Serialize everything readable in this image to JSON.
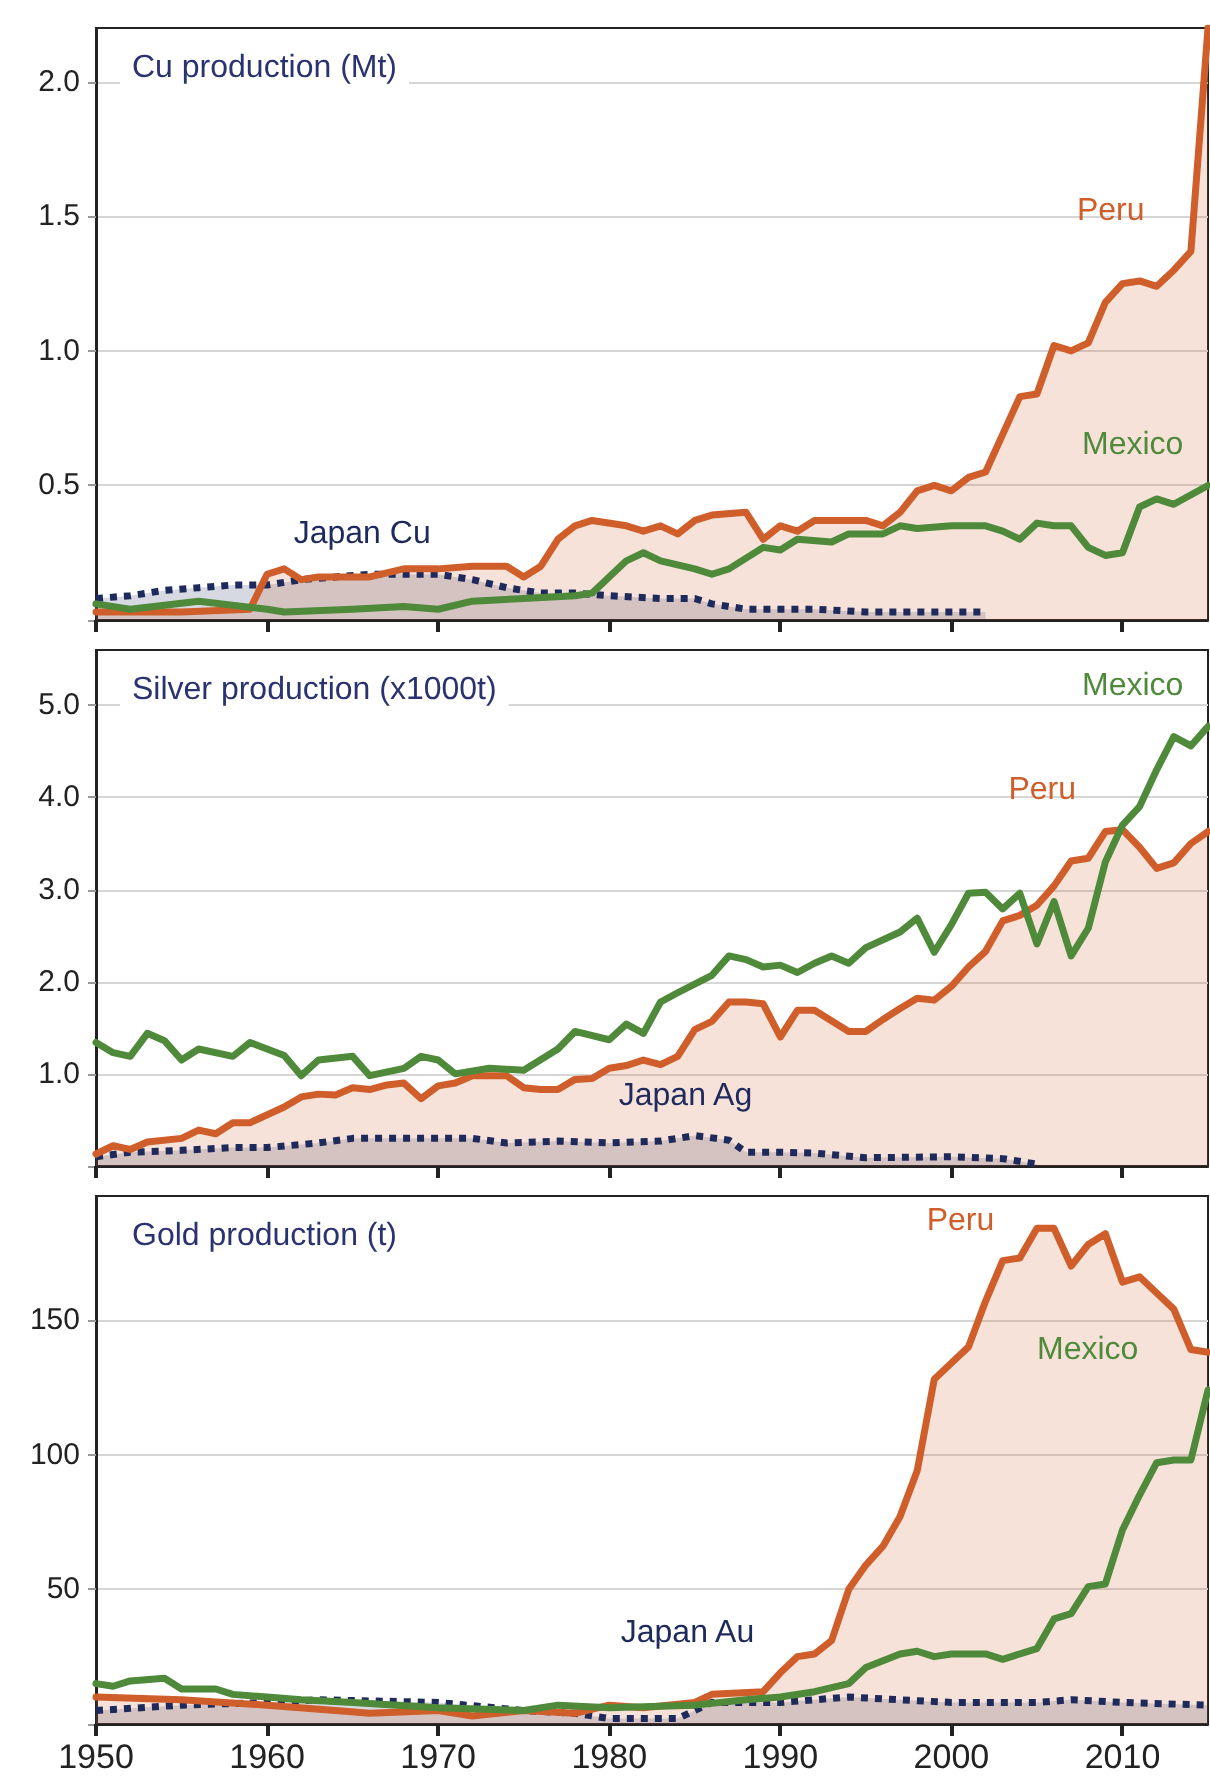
{
  "chart_data": [
    {
      "type": "line",
      "title": "Cu production (Mt)",
      "xlim": [
        1950,
        2015
      ],
      "xticks": [
        1950,
        1960,
        1970,
        1980,
        1990,
        2000,
        2010
      ],
      "ylim": [
        0,
        2.2
      ],
      "yticks": [
        {
          "value": 0,
          "label": null
        },
        {
          "value": 0.5,
          "label": "0.5"
        },
        {
          "value": 1,
          "label": "1.0"
        },
        {
          "value": 1.5,
          "label": "1.5"
        },
        {
          "value": 2,
          "label": "2.0"
        }
      ],
      "grid": "y",
      "tick_labels": "y",
      "marker": "none",
      "series": [
        {
          "name": "Japan Cu",
          "type": "area",
          "color": "#1f2a5c",
          "line_style": "dotted",
          "x": [
            1950,
            1952,
            1954,
            1956,
            1958,
            1960,
            1962,
            1964,
            1966,
            1968,
            1970,
            1972,
            1974,
            1976,
            1978,
            1980,
            1983,
            1985,
            1986,
            1988,
            1992,
            1995,
            2002
          ],
          "values": [
            0.08,
            0.09,
            0.11,
            0.12,
            0.13,
            0.13,
            0.15,
            0.16,
            0.17,
            0.17,
            0.17,
            0.15,
            0.12,
            0.1,
            0.1,
            0.09,
            0.08,
            0.08,
            0.06,
            0.04,
            0.04,
            0.03,
            0.03
          ]
        },
        {
          "name": "Peru",
          "type": "area",
          "color": "#cf5e2a",
          "x": [
            1950,
            1955,
            1959,
            1960,
            1961,
            1962,
            1963,
            1966,
            1968,
            1970,
            1972,
            1974,
            1975,
            1976,
            1977,
            1978,
            1979,
            1981,
            1982,
            1983,
            1984,
            1985,
            1986,
            1988,
            1989,
            1990,
            1991,
            1992,
            1995,
            1996,
            1997,
            1998,
            1999,
            2000,
            2001,
            2002,
            2003,
            2004,
            2005,
            2006,
            2007,
            2008,
            2009,
            2010,
            2011,
            2012,
            2013,
            2014,
            2015
          ],
          "values": [
            0.03,
            0.03,
            0.04,
            0.17,
            0.19,
            0.15,
            0.16,
            0.16,
            0.19,
            0.19,
            0.2,
            0.2,
            0.16,
            0.2,
            0.3,
            0.35,
            0.37,
            0.35,
            0.33,
            0.35,
            0.32,
            0.37,
            0.39,
            0.4,
            0.3,
            0.35,
            0.33,
            0.37,
            0.37,
            0.35,
            0.4,
            0.48,
            0.5,
            0.48,
            0.53,
            0.55,
            0.69,
            0.83,
            0.84,
            1.02,
            1,
            1.03,
            1.18,
            1.25,
            1.26,
            1.24,
            1.3,
            1.37,
            2.2
          ]
        },
        {
          "name": "Mexico",
          "color": "#4e8a3a",
          "x": [
            1950,
            1952,
            1956,
            1960,
            1961,
            1965,
            1968,
            1970,
            1972,
            1975,
            1978,
            1979,
            1981,
            1982,
            1983,
            1985,
            1986,
            1987,
            1988,
            1989,
            1990,
            1991,
            1993,
            1994,
            1996,
            1997,
            1998,
            2000,
            2002,
            2003,
            2004,
            2005,
            2006,
            2007,
            2008,
            2009,
            2010,
            2011,
            2012,
            2013,
            2015
          ],
          "values": [
            0.06,
            0.04,
            0.07,
            0.04,
            0.03,
            0.04,
            0.05,
            0.04,
            0.07,
            0.08,
            0.09,
            0.1,
            0.22,
            0.25,
            0.22,
            0.19,
            0.17,
            0.19,
            0.23,
            0.27,
            0.26,
            0.3,
            0.29,
            0.32,
            0.32,
            0.35,
            0.34,
            0.35,
            0.35,
            0.33,
            0.3,
            0.36,
            0.35,
            0.35,
            0.27,
            0.24,
            0.25,
            0.42,
            0.45,
            0.43,
            0.5
          ]
        }
      ]
    },
    {
      "type": "line",
      "title": "Silver production (x1000t)",
      "xlim": [
        1950,
        2015
      ],
      "xticks": [
        1950,
        1960,
        1970,
        1980,
        1990,
        2000,
        2010
      ],
      "ylim": [
        0,
        5.6
      ],
      "yticks": [
        {
          "value": 0,
          "label": null
        },
        {
          "value": 1,
          "label": "1.0"
        },
        {
          "value": 2,
          "label": "2.0"
        },
        {
          "value": 3,
          "label": "3.0"
        },
        {
          "value": 4,
          "label": "4.0"
        },
        {
          "value": 5,
          "label": "5.0"
        }
      ],
      "grid": "y",
      "tick_labels": "y",
      "marker": "none",
      "series": [
        {
          "name": "Japan Ag",
          "type": "area",
          "color": "#1f2a5c",
          "line_style": "dotted",
          "x": [
            1950,
            1952,
            1955,
            1958,
            1960,
            1963,
            1965,
            1970,
            1972,
            1974,
            1977,
            1980,
            1983,
            1985,
            1987,
            1988,
            1990,
            1992,
            1995,
            2000,
            2003,
            2005
          ],
          "values": [
            0.1,
            0.15,
            0.17,
            0.2,
            0.2,
            0.25,
            0.3,
            0.3,
            0.3,
            0.25,
            0.27,
            0.25,
            0.27,
            0.33,
            0.28,
            0.15,
            0.15,
            0.14,
            0.09,
            0.1,
            0.08,
            0.02
          ]
        },
        {
          "name": "Peru",
          "type": "area",
          "color": "#cf5e2a",
          "x": [
            1950,
            1951,
            1952,
            1953,
            1955,
            1956,
            1957,
            1958,
            1959,
            1961,
            1962,
            1963,
            1964,
            1965,
            1966,
            1967,
            1968,
            1969,
            1970,
            1971,
            1972,
            1973,
            1974,
            1975,
            1976,
            1977,
            1978,
            1979,
            1980,
            1981,
            1982,
            1983,
            1984,
            1985,
            1986,
            1987,
            1988,
            1989,
            1990,
            1991,
            1992,
            1994,
            1995,
            1996,
            1997,
            1998,
            1999,
            2000,
            2001,
            2002,
            2003,
            2004,
            2005,
            2006,
            2007,
            2008,
            2009,
            2010,
            2011,
            2012,
            2013,
            2014,
            2015
          ],
          "values": [
            0.13,
            0.22,
            0.18,
            0.26,
            0.3,
            0.39,
            0.35,
            0.47,
            0.47,
            0.64,
            0.75,
            0.78,
            0.77,
            0.85,
            0.83,
            0.88,
            0.9,
            0.73,
            0.87,
            0.9,
            0.98,
            0.98,
            0.98,
            0.85,
            0.83,
            0.83,
            0.94,
            0.95,
            1.06,
            1.09,
            1.15,
            1.1,
            1.19,
            1.48,
            1.57,
            1.78,
            1.78,
            1.76,
            1.4,
            1.69,
            1.69,
            1.46,
            1.46,
            1.59,
            1.71,
            1.82,
            1.8,
            1.95,
            2.16,
            2.33,
            2.66,
            2.72,
            2.83,
            3.04,
            3.31,
            3.34,
            3.63,
            3.65,
            3.46,
            3.23,
            3.29,
            3.5,
            3.63
          ]
        },
        {
          "name": "Mexico",
          "color": "#4e8a3a",
          "x": [
            1950,
            1951,
            1952,
            1953,
            1954,
            1955,
            1956,
            1958,
            1959,
            1960,
            1961,
            1962,
            1963,
            1965,
            1966,
            1968,
            1969,
            1970,
            1971,
            1973,
            1975,
            1977,
            1978,
            1980,
            1981,
            1982,
            1983,
            1984,
            1986,
            1987,
            1988,
            1989,
            1990,
            1991,
            1992,
            1993,
            1994,
            1995,
            1997,
            1998,
            1999,
            2000,
            2001,
            2002,
            2003,
            2004,
            2005,
            2006,
            2007,
            2008,
            2009,
            2010,
            2011,
            2012,
            2013,
            2014,
            2015
          ],
          "values": [
            1.34,
            1.23,
            1.19,
            1.44,
            1.36,
            1.15,
            1.27,
            1.19,
            1.34,
            1.27,
            1.2,
            0.98,
            1.15,
            1.19,
            0.98,
            1.06,
            1.19,
            1.15,
            1,
            1.06,
            1.04,
            1.27,
            1.46,
            1.37,
            1.54,
            1.44,
            1.78,
            1.88,
            2.07,
            2.28,
            2.24,
            2.16,
            2.18,
            2.1,
            2.2,
            2.28,
            2.2,
            2.37,
            2.54,
            2.69,
            2.32,
            2.62,
            2.96,
            2.97,
            2.79,
            2.96,
            2.41,
            2.87,
            2.28,
            2.58,
            3.3,
            3.7,
            3.9,
            4.3,
            4.66,
            4.56,
            4.77
          ]
        }
      ]
    },
    {
      "type": "line",
      "title": "Gold production (t)",
      "xlim": [
        1950,
        2015
      ],
      "xticks": [
        1950,
        1960,
        1970,
        1980,
        1990,
        2000,
        2010
      ],
      "ylim": [
        0,
        196
      ],
      "yticks": [
        {
          "value": 0,
          "label": null
        },
        50,
        100,
        150
      ],
      "grid": "y",
      "marker": "none",
      "series": [
        {
          "name": "Japan Au",
          "type": "area",
          "color": "#1f2a5c",
          "line_style": "dotted",
          "x": [
            1950,
            1955,
            1960,
            1963,
            1970,
            1975,
            1978,
            1980,
            1984,
            1986,
            1990,
            1994,
            2000,
            2005,
            2007,
            2010,
            2015
          ],
          "values": [
            5,
            7,
            8,
            9,
            8,
            5,
            4,
            2,
            2,
            8,
            8,
            10,
            8,
            8,
            9,
            8,
            7
          ]
        },
        {
          "name": "Peru",
          "type": "area",
          "color": "#cf5e2a",
          "x": [
            1950,
            1955,
            1960,
            1964,
            1966,
            1970,
            1972,
            1975,
            1978,
            1980,
            1982,
            1985,
            1986,
            1989,
            1990,
            1991,
            1992,
            1993,
            1994,
            1995,
            1996,
            1997,
            1998,
            1999,
            2000,
            2001,
            2002,
            2003,
            2004,
            2005,
            2006,
            2007,
            2008,
            2009,
            2010,
            2011,
            2012,
            2013,
            2014,
            2015
          ],
          "values": [
            10,
            9,
            7,
            5,
            4,
            5,
            3,
            5,
            4,
            7,
            6,
            8,
            11,
            12,
            19,
            25,
            26,
            31,
            50,
            59,
            66,
            77,
            94,
            128,
            134,
            140,
            157,
            172,
            173,
            184,
            184,
            170,
            178,
            182,
            164,
            166,
            160,
            154,
            139,
            138
          ]
        },
        {
          "name": "Mexico",
          "color": "#4e8a3a",
          "x": [
            1950,
            1951,
            1952,
            1954,
            1955,
            1957,
            1958,
            1960,
            1962,
            1965,
            1970,
            1975,
            1977,
            1980,
            1985,
            1988,
            1990,
            1992,
            1994,
            1995,
            1997,
            1998,
            1999,
            2000,
            2002,
            2003,
            2005,
            2006,
            2007,
            2008,
            2009,
            2010,
            2011,
            2012,
            2013,
            2014,
            2015
          ],
          "values": [
            15,
            14,
            16,
            17,
            13,
            13,
            11,
            10,
            9,
            8,
            6,
            5,
            7,
            6,
            7,
            9,
            10,
            12,
            15,
            21,
            26,
            27,
            25,
            26,
            26,
            24,
            28,
            39,
            41,
            51,
            52,
            72,
            85,
            97,
            98,
            98,
            124
          ]
        }
      ]
    }
  ]
}
